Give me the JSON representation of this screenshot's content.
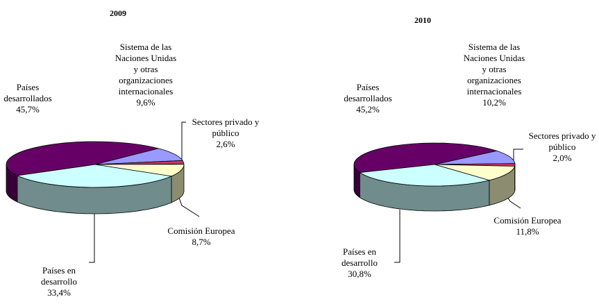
{
  "chart_data": [
    {
      "type": "pie",
      "title": "2009",
      "categories": [
        "Países desarrollados",
        "Sistema de las Naciones Unidas y otras organizaciones internacionales",
        "Sectores privado y público",
        "Comisión Europea",
        "Países en desarrollo"
      ],
      "values": [
        45.7,
        9.6,
        2.6,
        8.7,
        33.4
      ],
      "value_labels": [
        "45,7%",
        "9,6%",
        "2,6%",
        "8,7%",
        "33,4%"
      ],
      "colors": [
        "#660066",
        "#9999ff",
        "#cc3366",
        "#ffffcc",
        "#ccffff"
      ]
    },
    {
      "type": "pie",
      "title": "2010",
      "categories": [
        "Países desarrollados",
        "Sistema de las Naciones Unidas y otras organizaciones internacionales",
        "Sectores privado y público",
        "Comisión Europea",
        "Países en desarrollo"
      ],
      "values": [
        45.2,
        10.2,
        2.0,
        11.8,
        30.8
      ],
      "value_labels": [
        "45,2%",
        "10,2%",
        "2,0%",
        "11,8%",
        "30,8%"
      ],
      "colors": [
        "#660066",
        "#9999ff",
        "#cc3366",
        "#ffffcc",
        "#ccffff"
      ]
    }
  ]
}
